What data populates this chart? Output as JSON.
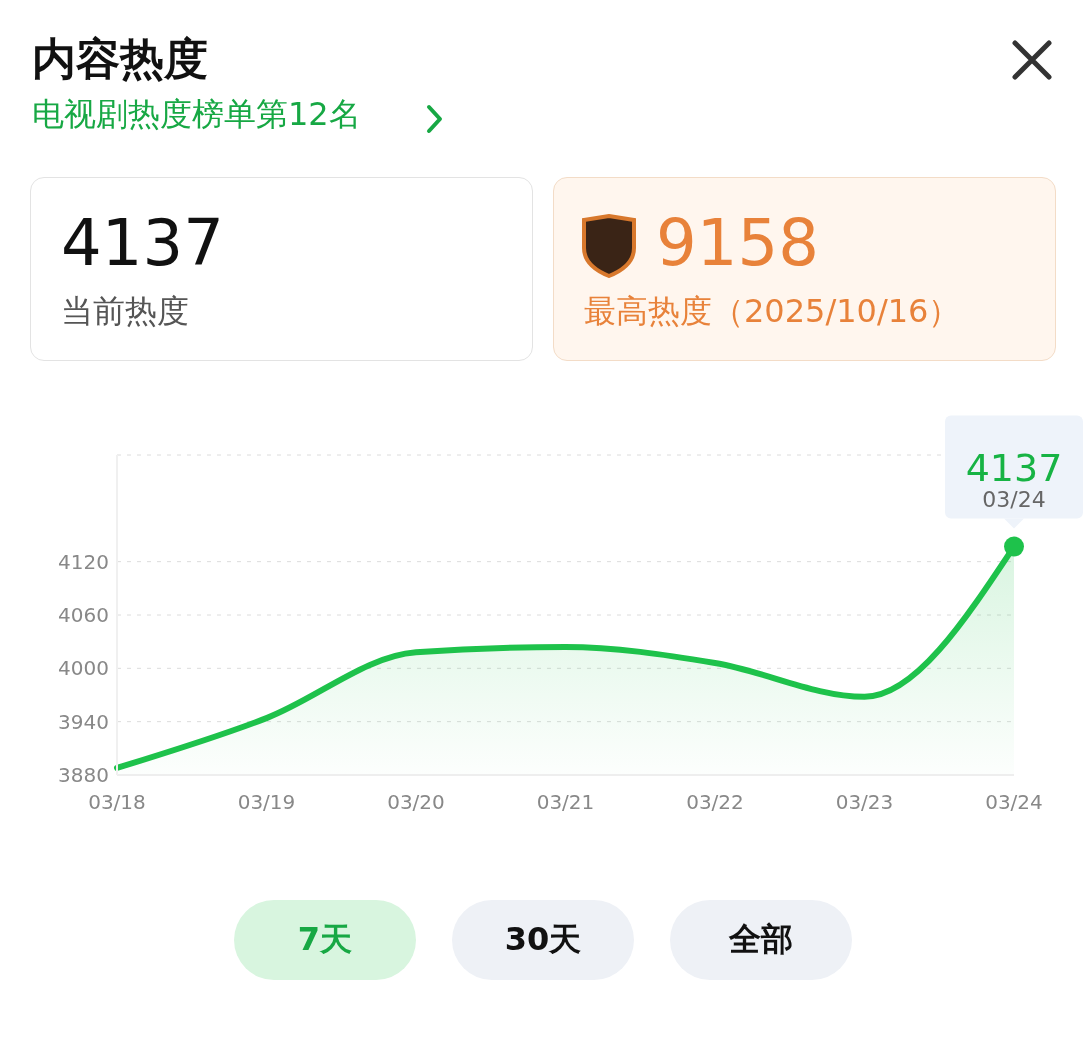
{
  "chart_data": {
    "type": "area",
    "title": "内容热度",
    "subtitle": "电视剧热度榜单第12名",
    "categories": [
      "03/18",
      "03/19",
      "03/20",
      "03/21",
      "03/22",
      "03/23",
      "03/24"
    ],
    "values": [
      3888,
      3944,
      4018,
      4024,
      4006,
      3968,
      4137
    ],
    "color": "#1ec24b",
    "ylim": [
      3880,
      4240
    ],
    "yticks": [
      3880,
      3940,
      4000,
      4060,
      4120
    ],
    "grid": "y",
    "annotations": [
      "4137",
      "当前热度",
      "9158",
      "最高热度（2025/10/16）",
      "7天",
      "30天",
      "全部",
      {
        "text": "4137",
        "x": "03/24",
        "y": 4137
      },
      {
        "text": "03/24",
        "x": "03/24",
        "y": 4137
      }
    ]
  }
}
